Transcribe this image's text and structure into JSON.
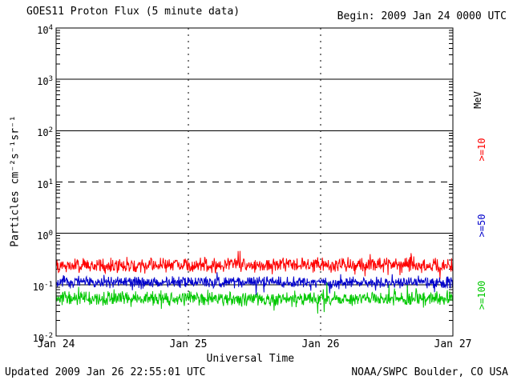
{
  "chart_data": {
    "type": "line",
    "title": "GOES11 Proton Flux (5 minute data)",
    "begin_label": "Begin: 2009 Jan 24 0000 UTC",
    "xlabel": "Universal Time",
    "ylabel": "Particles cm⁻²s⁻¹sr⁻¹",
    "updated": "Updated 2009 Jan 26 22:55:01 UTC",
    "credit": "NOAA/SWPC Boulder, CO USA",
    "x_ticks": [
      "Jan 24",
      "Jan 25",
      "Jan 26",
      "Jan 27"
    ],
    "y_ticks": [
      {
        "base": "10",
        "exp": "4"
      },
      {
        "base": "10",
        "exp": "3"
      },
      {
        "base": "10",
        "exp": "2"
      },
      {
        "base": "10",
        "exp": "1"
      },
      {
        "base": "10",
        "exp": "0"
      },
      {
        "base": "10",
        "exp": "-1"
      },
      {
        "base": "10",
        "exp": "-2"
      }
    ],
    "y_log_range": [
      -2,
      4
    ],
    "solid_gridlines_exp": [
      3,
      2,
      0,
      -1
    ],
    "dashed_gridlines_exp": [
      1
    ],
    "days": 3,
    "points_per_series": 864,
    "right_labels": [
      {
        "text": "MeV",
        "color": "#000000"
      },
      {
        "text": ">=10",
        "color": "#fe0000"
      },
      {
        "text": ">=50",
        "color": "#0000cc"
      },
      {
        "text": ">=100",
        "color": "#00c800"
      }
    ],
    "series": [
      {
        "name": ">=10 MeV",
        "color": "#fe0000",
        "baseline_log10": -0.62,
        "noise_log10": 0.17,
        "seed": 101,
        "approx_mean_flux": 0.24
      },
      {
        "name": ">=50 MeV",
        "color": "#0000cc",
        "baseline_log10": -0.95,
        "noise_log10": 0.13,
        "seed": 202,
        "approx_mean_flux": 0.11
      },
      {
        "name": ">=100 MeV",
        "color": "#00c800",
        "baseline_log10": -1.27,
        "noise_log10": 0.16,
        "seed": 303,
        "approx_mean_flux": 0.054
      }
    ]
  }
}
